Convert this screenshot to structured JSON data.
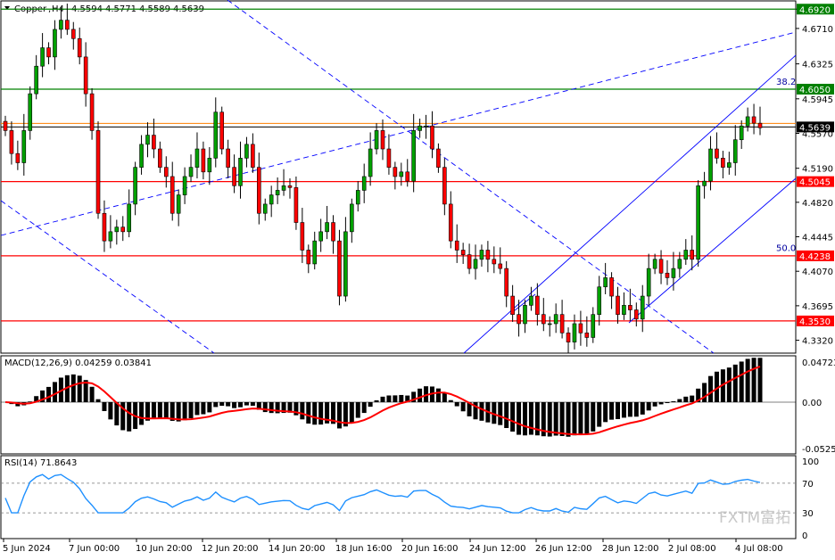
{
  "chart_data": [
    {
      "type": "candlestick",
      "symbol": "Copper",
      "timeframe": "H4",
      "ohlc_header": [
        "4.5594",
        "4.5771",
        "4.5589",
        "4.5639"
      ],
      "y_ticks": [
        "4.6920",
        "4.6710",
        "4.6325",
        "4.5945",
        "4.5570",
        "4.5190",
        "4.4820",
        "4.4445",
        "4.4070",
        "4.3695",
        "4.3320"
      ],
      "ylim": [
        4.318,
        4.7
      ],
      "x_ticks": [
        "5 Jun 2024",
        "7 Jun 00:00",
        "10 Jun 20:00",
        "12 Jun 20:00",
        "14 Jun 20:00",
        "18 Jun 16:00",
        "20 Jun 16:00",
        "24 Jun 12:00",
        "26 Jun 12:00",
        "28 Jun 12:00",
        "2 Jul 08:00",
        "4 Jul 08:00"
      ],
      "current_price": "4.5639",
      "horizontal_levels": [
        {
          "label": "4.6920",
          "value": 4.692,
          "color": "#008000"
        },
        {
          "label": "4.6050",
          "value": 4.605,
          "color": "#008000"
        },
        {
          "label": "4.5045",
          "value": 4.5045,
          "color": "#ff0000"
        },
        {
          "label": "4.4238",
          "value": 4.4238,
          "color": "#ff0000"
        },
        {
          "label": "4.3530",
          "value": 4.353,
          "color": "#ff0000"
        }
      ],
      "fib_labels": [
        {
          "label": "38.2",
          "value": 4.609
        },
        {
          "label": "50.0",
          "value": 4.428
        }
      ],
      "closes": [
        4.56,
        4.535,
        4.525,
        4.56,
        4.6,
        4.63,
        4.65,
        4.64,
        4.67,
        4.68,
        4.67,
        4.66,
        4.64,
        4.6,
        4.56,
        4.47,
        4.44,
        4.45,
        4.455,
        4.45,
        4.48,
        4.52,
        4.545,
        4.555,
        4.54,
        4.52,
        4.51,
        4.47,
        4.49,
        4.51,
        4.52,
        4.54,
        4.515,
        4.53,
        4.58,
        4.54,
        4.52,
        4.5,
        4.53,
        4.545,
        4.52,
        4.47,
        4.48,
        4.49,
        4.495,
        4.5,
        4.498,
        4.46,
        4.43,
        4.415,
        4.44,
        4.45,
        4.46,
        4.44,
        4.38,
        4.45,
        4.48,
        4.495,
        4.51,
        4.54,
        4.56,
        4.54,
        4.52,
        4.51,
        4.515,
        4.505,
        4.56,
        4.565,
        4.565,
        4.54,
        4.52,
        4.48,
        4.44,
        4.43,
        4.425,
        4.41,
        4.42,
        4.43,
        4.42,
        4.415,
        4.41,
        4.38,
        4.36,
        4.35,
        4.37,
        4.38,
        4.36,
        4.35,
        4.35,
        4.36,
        4.34,
        4.33,
        4.35,
        4.34,
        4.335,
        4.36,
        4.39,
        4.4,
        4.38,
        4.36,
        4.37,
        4.365,
        4.355,
        4.38,
        4.41,
        4.42,
        4.405,
        4.4,
        4.41,
        4.42,
        4.43,
        4.42,
        4.5,
        4.505,
        4.54,
        4.53,
        4.52,
        4.525,
        4.55,
        4.565,
        4.575,
        4.568,
        4.563
      ],
      "macd": {
        "label": "MACD(12,26,9) 0.04259 0.03841",
        "params": "12,26,9",
        "main": 0.04259,
        "signal": 0.03841,
        "y_ticks": [
          "0.04723",
          "0.00",
          "-0.05259"
        ]
      },
      "rsi": {
        "label": "RSI(14) 71.8643",
        "period": 14,
        "value": 71.8643,
        "y_ticks": [
          "100",
          "70",
          "30",
          "0"
        ]
      },
      "colors": {
        "bull": "#00a000",
        "bear": "#ff0000",
        "grid": "#000000",
        "ma": "#ff0000",
        "rsi": "#1e90ff",
        "trend": "#0000ff"
      }
    }
  ],
  "watermark": "FXTM富拓"
}
